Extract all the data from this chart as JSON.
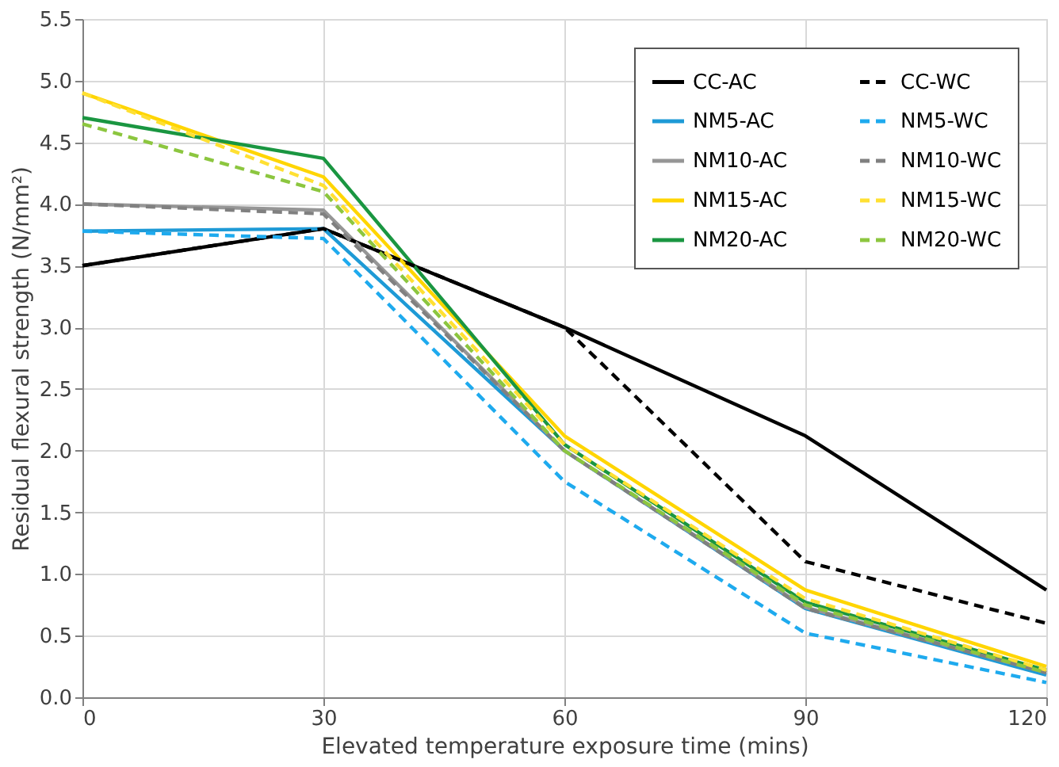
{
  "chart_data": {
    "type": "line",
    "xlabel": "Elevated temperature exposure time (mins)",
    "ylabel": "Residual flexural strength (N/mm²)",
    "x": [
      0,
      30,
      60,
      90,
      120
    ],
    "series": [
      {
        "name": "CC-AC",
        "color": "#000000",
        "line_style": "solid",
        "values": [
          3.5,
          3.8,
          3.0,
          2.12,
          0.87
        ]
      },
      {
        "name": "NM5-AC",
        "color": "#1e9ad6",
        "line_style": "solid",
        "values": [
          3.78,
          3.8,
          2.0,
          0.72,
          0.18
        ]
      },
      {
        "name": "NM10-AC",
        "color": "#969696",
        "line_style": "solid",
        "values": [
          4.0,
          3.95,
          2.0,
          0.73,
          0.2
        ]
      },
      {
        "name": "NM15-AC",
        "color": "#ffd500",
        "line_style": "solid",
        "values": [
          4.9,
          4.22,
          2.12,
          0.87,
          0.25
        ]
      },
      {
        "name": "NM20-AC",
        "color": "#1a9641",
        "line_style": "solid",
        "values": [
          4.7,
          4.37,
          2.05,
          0.77,
          0.22
        ]
      },
      {
        "name": "CC-WC",
        "color": "#000000",
        "line_style": "dashed",
        "values": [
          3.5,
          3.8,
          3.0,
          1.1,
          0.6
        ]
      },
      {
        "name": "NM5-WC",
        "color": "#1eaaee",
        "line_style": "dashed",
        "values": [
          3.78,
          3.72,
          1.75,
          0.52,
          0.12
        ]
      },
      {
        "name": "NM10-WC",
        "color": "#808080",
        "line_style": "dashed",
        "values": [
          4.0,
          3.92,
          2.0,
          0.72,
          0.2
        ]
      },
      {
        "name": "NM15-WC",
        "color": "#ffe033",
        "line_style": "dashed",
        "values": [
          4.9,
          4.15,
          2.05,
          0.8,
          0.22
        ]
      },
      {
        "name": "NM20-WC",
        "color": "#8cc63f",
        "line_style": "dashed",
        "values": [
          4.65,
          4.1,
          2.0,
          0.75,
          0.2
        ]
      }
    ],
    "xlim": [
      0,
      120
    ],
    "xticks": [
      0,
      30,
      60,
      90,
      120
    ],
    "ylim": [
      0,
      5.5
    ],
    "yticks": [
      {
        "value": 0,
        "label": "0.0"
      },
      0.5,
      {
        "value": 1,
        "label": "1.0"
      },
      1.5,
      {
        "value": 2,
        "label": "2.0"
      },
      2.5,
      {
        "value": 3,
        "label": "3.0"
      },
      3.5,
      {
        "value": 4,
        "label": "4.0"
      },
      4.5,
      {
        "value": 5,
        "label": "5.0"
      },
      5.5
    ],
    "grid": true,
    "legend": "top right",
    "marker": "none"
  }
}
